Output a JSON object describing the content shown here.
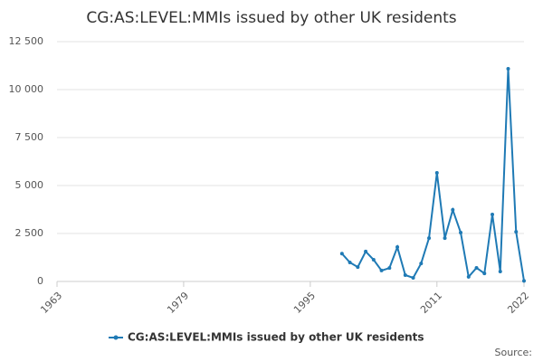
{
  "chart_data": {
    "type": "line",
    "title": "CG:AS:LEVEL:MMIs issued by other UK residents",
    "x": [
      1999,
      2000,
      2001,
      2002,
      2003,
      2004,
      2005,
      2006,
      2007,
      2008,
      2009,
      2010,
      2011,
      2012,
      2013,
      2014,
      2015,
      2016,
      2017,
      2018,
      2019,
      2020,
      2021,
      2022
    ],
    "series": [
      {
        "name": "CG:AS:LEVEL:MMIs issued by other UK residents",
        "color": "#1f7ab5",
        "values": [
          1450,
          990,
          750,
          1560,
          1130,
          570,
          700,
          1790,
          330,
          190,
          940,
          2260,
          5660,
          2260,
          3730,
          2550,
          240,
          710,
          420,
          3490,
          520,
          11085,
          2590,
          30
        ]
      }
    ],
    "xlim": [
      1963,
      2022
    ],
    "xticks": [
      1963,
      1979,
      1995,
      2011,
      2022
    ],
    "ylim": [
      0,
      12500
    ],
    "yticks": [
      0,
      {
        "value": 2500,
        "label": "2 500"
      },
      {
        "value": 5000,
        "label": "5 000"
      },
      {
        "value": 7500,
        "label": "7 500"
      },
      {
        "value": 10000,
        "label": "10 000"
      },
      {
        "value": 12500,
        "label": "12 500"
      }
    ],
    "grid": true,
    "source": "Source:"
  }
}
